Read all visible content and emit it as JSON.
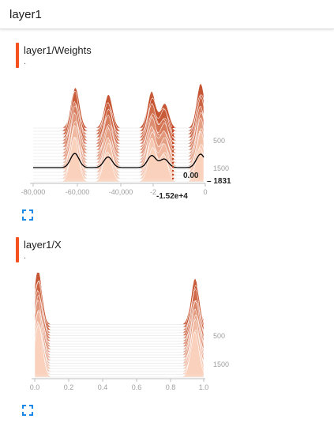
{
  "header": {
    "title": "layer1"
  },
  "colors": {
    "accent": "#f4511e",
    "ridge_light": "#fbd2bd",
    "ridge_dark": "#c0431d",
    "highlight": "#000000"
  },
  "cards": [
    {
      "title": "layer1/Weights",
      "subtitle": ".",
      "expand_icon": "fullscreen-icon",
      "chart_data": {
        "type": "histogram-ridge",
        "x_ticks": [
          "-80,000",
          "-60,000",
          "-40,000",
          "-2",
          "0"
        ],
        "y_ticks": [
          "500",
          "1500"
        ],
        "annotations": {
          "value": "0.00",
          "x": "-1.52e+4",
          "step": "1831"
        },
        "peaks": [
          {
            "center": -62000,
            "height": 1.0
          },
          {
            "center": -46000,
            "height": 0.75
          },
          {
            "center": -25000,
            "height": 0.85
          },
          {
            "center": -19000,
            "height": 0.6
          },
          {
            "center": -1500,
            "height": 0.95
          }
        ]
      }
    },
    {
      "title": "layer1/X",
      "subtitle": ".",
      "expand_icon": "fullscreen-icon",
      "chart_data": {
        "type": "histogram-ridge",
        "x_ticks": [
          "0.0",
          "0.2",
          "0.4",
          "0.6",
          "0.8",
          "1.0"
        ],
        "y_ticks": [
          "500",
          "1500"
        ],
        "peaks": [
          {
            "center": 0.02,
            "height": 1.0
          },
          {
            "center": 0.95,
            "height": 0.9
          }
        ]
      }
    }
  ]
}
